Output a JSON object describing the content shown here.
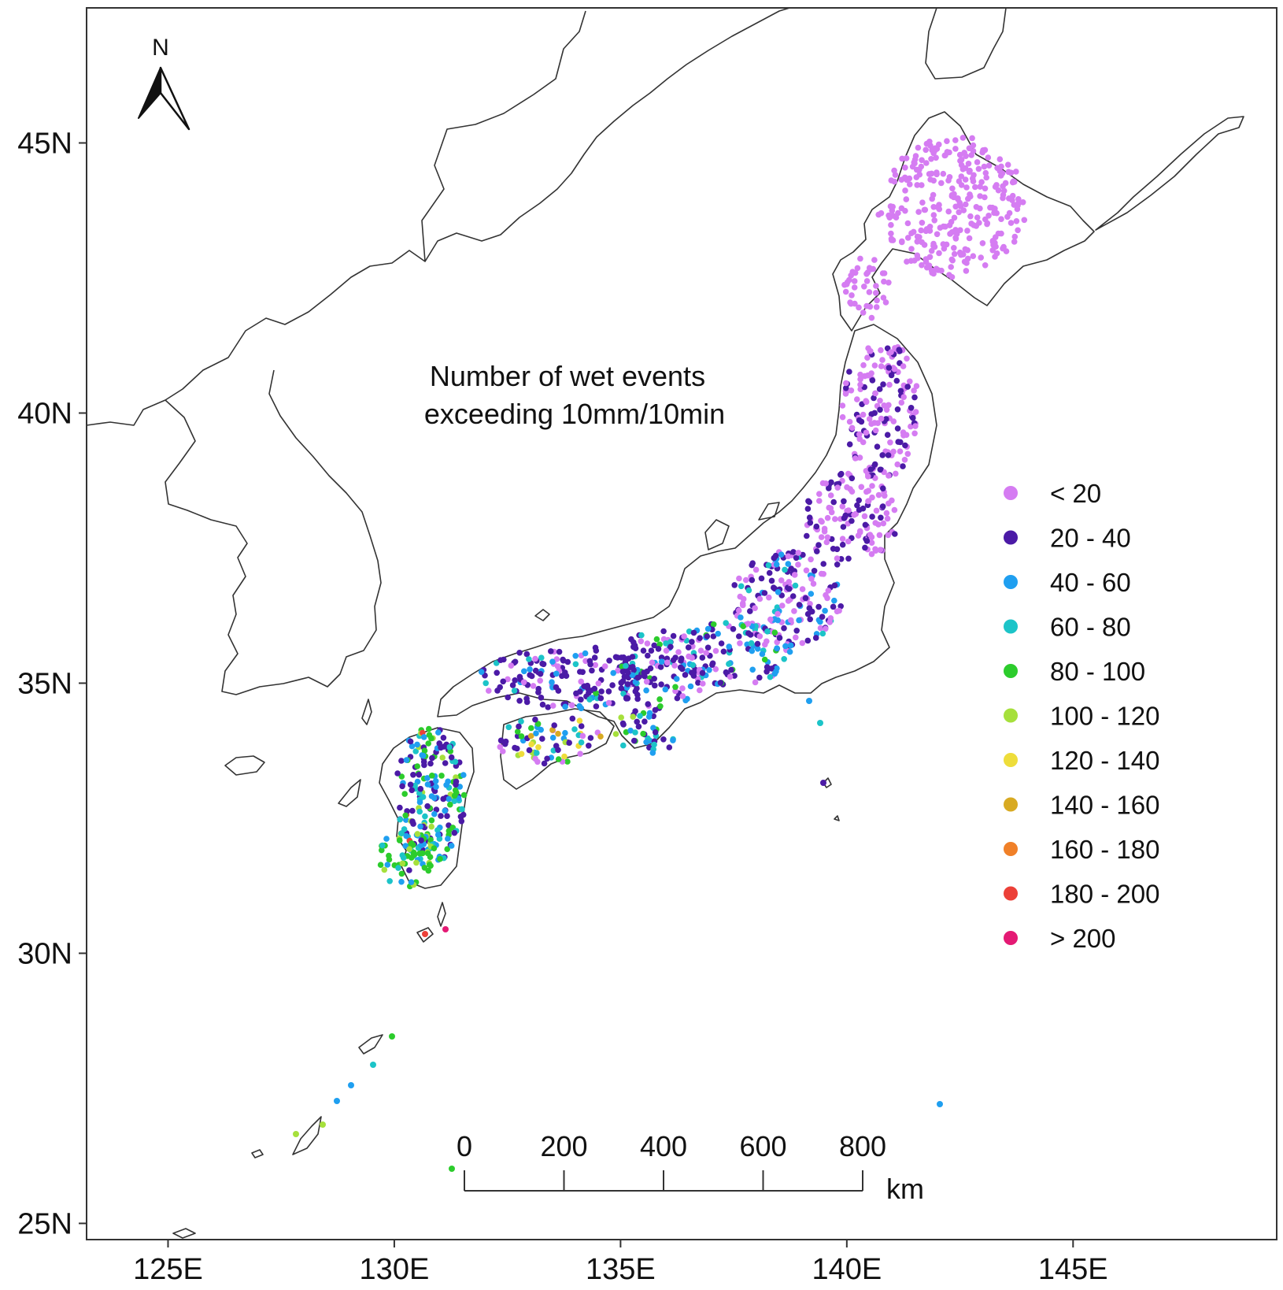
{
  "title_lines": [
    "Number of wet events",
    "exceeding 10mm/10min"
  ],
  "axes": {
    "lon": {
      "min": 123.2,
      "max": 149.5,
      "ticks": [
        125,
        130,
        135,
        140,
        145
      ],
      "labels": [
        "125E",
        "130E",
        "135E",
        "140E",
        "145E"
      ]
    },
    "lat": {
      "min": 24.7,
      "max": 47.5,
      "ticks": [
        25,
        30,
        35,
        40,
        45
      ],
      "labels": [
        "25N",
        "30N",
        "35N",
        "40N",
        "45N"
      ]
    }
  },
  "north_arrow": {
    "label": "N"
  },
  "scale_bar": {
    "ticks": [
      0,
      200,
      400,
      600,
      800
    ],
    "labels": [
      "0",
      "200",
      "400",
      "600",
      "800"
    ],
    "unit": "km"
  },
  "legend": [
    {
      "label": "< 20",
      "color": "#d57cf2"
    },
    {
      "label": "20 - 40",
      "color": "#4b1aa6"
    },
    {
      "label": "40 - 60",
      "color": "#1f9ff0"
    },
    {
      "label": "60 - 80",
      "color": "#1cc4c8"
    },
    {
      "label": "80 - 100",
      "color": "#2ccc2c"
    },
    {
      "label": "100 - 120",
      "color": "#a6e03c"
    },
    {
      "label": "120 - 140",
      "color": "#eedd3a"
    },
    {
      "label": "140 - 160",
      "color": "#d8aa22"
    },
    {
      "label": "160 - 180",
      "color": "#f08028"
    },
    {
      "label": "180 - 200",
      "color": "#ec4038"
    },
    {
      "label": "> 200",
      "color": "#e41a74"
    }
  ]
}
